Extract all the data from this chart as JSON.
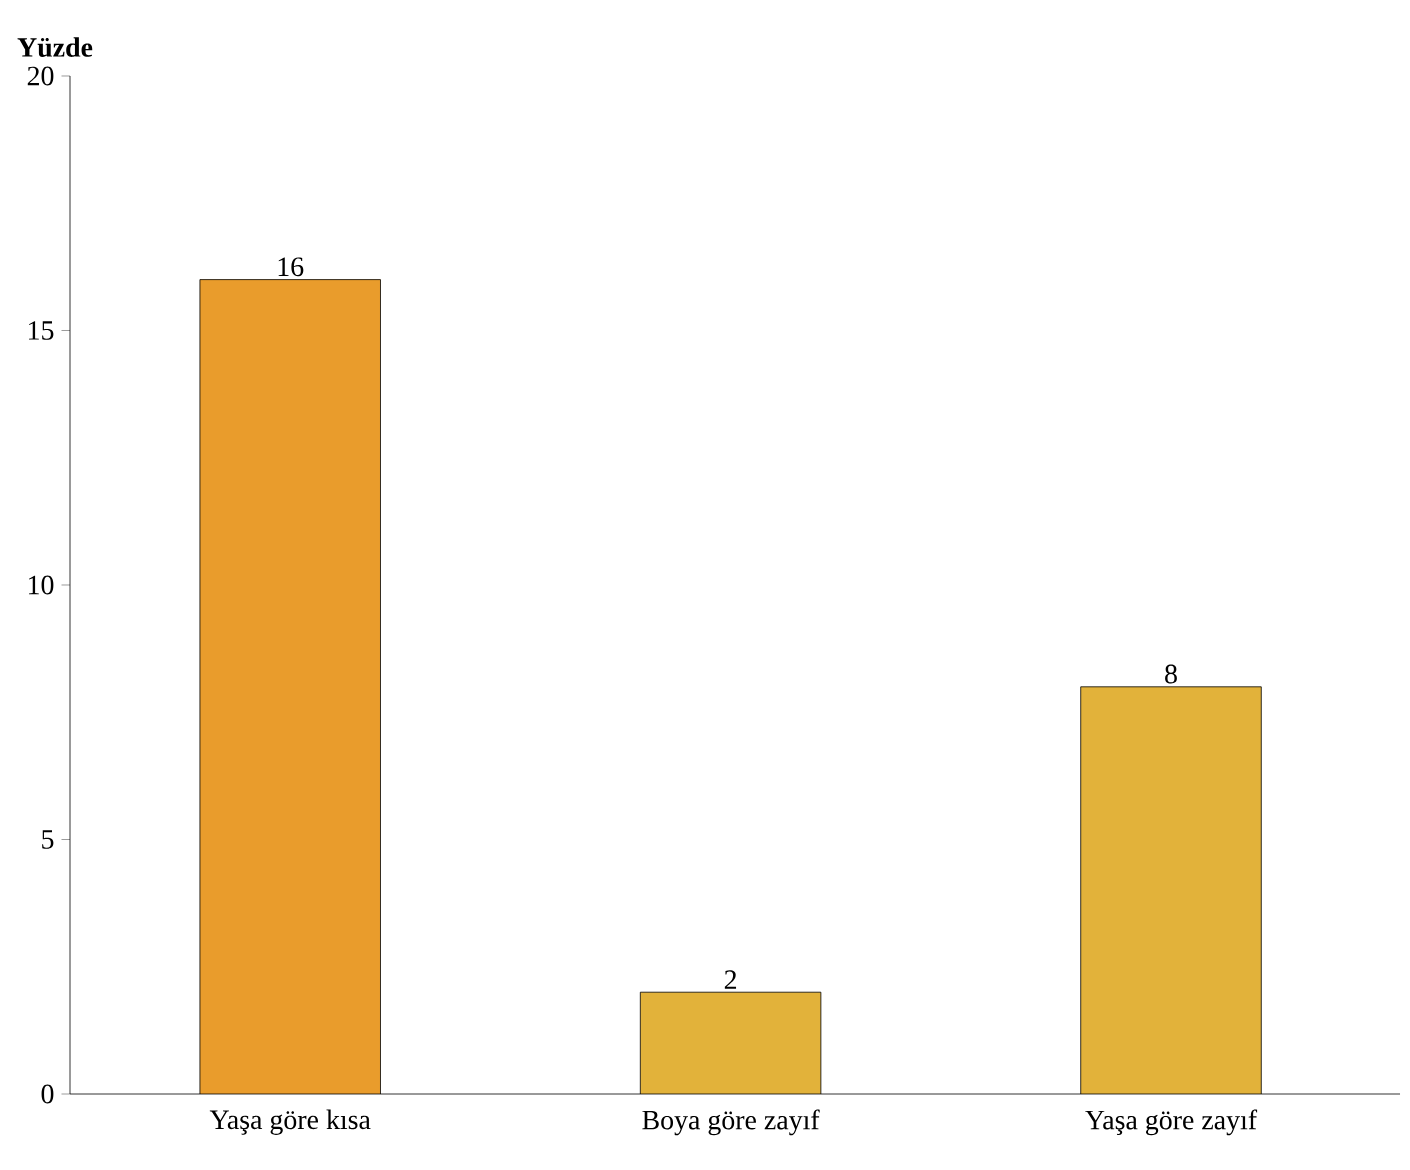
{
  "chart_data": {
    "type": "bar",
    "ylabel": "Yüzde",
    "categories": [
      "Yaşa göre kısa",
      "Boya göre zayıf",
      "Yaşa göre zayıf"
    ],
    "values": [
      16,
      2,
      8
    ],
    "colors": [
      "#e99c2c",
      "#e2b23a",
      "#e2b23a"
    ],
    "ylim": [
      0,
      20
    ],
    "yticks": [
      0,
      5,
      10,
      15,
      20
    ],
    "data_labels": true
  }
}
